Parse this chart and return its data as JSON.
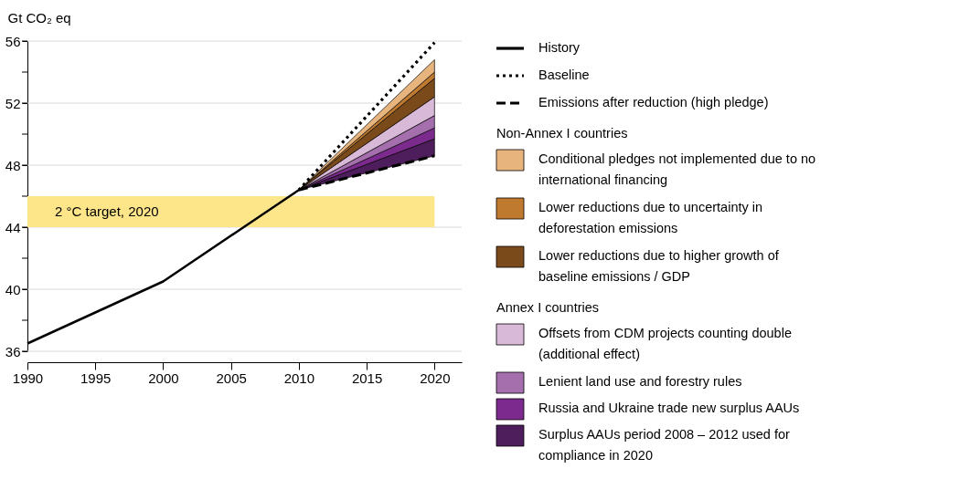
{
  "chart_data": {
    "type": "line",
    "ylabel": "Gt CO₂ eq",
    "xlim": [
      1990,
      2022
    ],
    "ylim": [
      36,
      56
    ],
    "xticks": [
      1990,
      1995,
      2000,
      2005,
      2010,
      2015,
      2020
    ],
    "yticks": [
      36,
      {
        "value": 38,
        "label": null
      },
      40,
      {
        "value": 42,
        "label": null
      },
      44,
      {
        "value": 46,
        "label": null
      },
      48,
      {
        "value": 50,
        "label": null
      },
      52,
      {
        "value": 54,
        "label": null
      },
      56
    ],
    "grid": "y",
    "legend": "right",
    "annotations": [
      "Non-Annex I countries",
      "Annex I countries"
    ],
    "bands": [
      {
        "axis": "y",
        "from": 44,
        "to": 46,
        "label": "2 °C target, 2020",
        "color": "#fde68a"
      }
    ],
    "series": [
      {
        "name": "History",
        "type": "line",
        "line_style": "solid",
        "color": "#000000",
        "x": [
          1990,
          2000,
          2010
        ],
        "values": [
          36.5,
          40.5,
          46.4
        ]
      },
      {
        "name": "Baseline",
        "type": "line",
        "line_style": "dotted",
        "color": "#000000",
        "x": [
          2010,
          2020
        ],
        "values": [
          46.4,
          55.9
        ]
      },
      {
        "name": "Emissions after reduction (high pledge)",
        "type": "line",
        "line_style": "dashed",
        "color": "#000000",
        "x": [
          2010,
          2020
        ],
        "values": [
          46.4,
          48.6
        ]
      },
      {
        "name": "Surplus AAUs period 2008 – 2012 used for compliance in 2020",
        "type": "area",
        "color": "#4e1d5b",
        "x": [
          2010,
          2020
        ],
        "values": [
          46.4,
          49.7
        ]
      },
      {
        "name": "Russia and Ukraine trade new surplus AAUs",
        "type": "area",
        "color": "#7d2a8e",
        "x": [
          2010,
          2020
        ],
        "values": [
          46.4,
          50.4
        ]
      },
      {
        "name": "Lenient land use and forestry rules",
        "type": "area",
        "color": "#a56fae",
        "x": [
          2010,
          2020
        ],
        "values": [
          46.4,
          51.2
        ]
      },
      {
        "name": "Offsets from CDM projects counting double (additional effect)",
        "type": "area",
        "color": "#d8b9d8",
        "x": [
          2010,
          2020
        ],
        "values": [
          46.4,
          52.4
        ]
      },
      {
        "name": "Lower reductions due to higher growth of baseline emissions / GDP",
        "type": "area",
        "color": "#7a4a1a",
        "x": [
          2010,
          2020
        ],
        "values": [
          46.4,
          53.6
        ]
      },
      {
        "name": "Lower reductions due to uncertainty in deforestation emissions",
        "type": "area",
        "color": "#c07a2f",
        "x": [
          2010,
          2020
        ],
        "values": [
          46.4,
          54.0
        ]
      },
      {
        "name": "Conditional pledges not implemented due to no international financing",
        "type": "area",
        "color": "#e8b47e",
        "x": [
          2010,
          2020
        ],
        "values": [
          46.4,
          54.8
        ]
      }
    ]
  }
}
